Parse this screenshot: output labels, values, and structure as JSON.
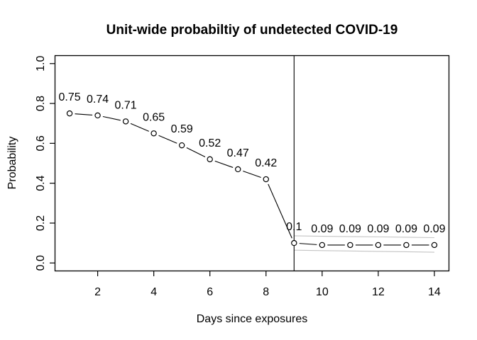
{
  "chart_data": {
    "type": "line",
    "title": "Unit-wide probabiltiy of undetected COVID-19",
    "xlabel": "Days since exposures",
    "ylabel": "Probability",
    "points": [
      {
        "x": 1,
        "y": 0.75,
        "label": "0.75"
      },
      {
        "x": 2,
        "y": 0.74,
        "label": "0.74"
      },
      {
        "x": 3,
        "y": 0.71,
        "label": "0.71"
      },
      {
        "x": 4,
        "y": 0.65,
        "label": "0.65"
      },
      {
        "x": 5,
        "y": 0.59,
        "label": "0.59"
      },
      {
        "x": 6,
        "y": 0.52,
        "label": "0.52"
      },
      {
        "x": 7,
        "y": 0.47,
        "label": "0.47"
      },
      {
        "x": 8,
        "y": 0.42,
        "label": "0.42"
      },
      {
        "x": 9,
        "y": 0.1,
        "label": "0.1"
      },
      {
        "x": 10,
        "y": 0.09,
        "label": "0.09"
      },
      {
        "x": 11,
        "y": 0.09,
        "label": "0.09"
      },
      {
        "x": 12,
        "y": 0.09,
        "label": "0.09"
      },
      {
        "x": 13,
        "y": 0.09,
        "label": "0.09"
      },
      {
        "x": 14,
        "y": 0.09,
        "label": "0.09"
      }
    ],
    "x_ticks": [
      {
        "v": 2,
        "label": "2"
      },
      {
        "v": 4,
        "label": "4"
      },
      {
        "v": 6,
        "label": "6"
      },
      {
        "v": 8,
        "label": "8"
      },
      {
        "v": 10,
        "label": "10"
      },
      {
        "v": 12,
        "label": "12"
      },
      {
        "v": 14,
        "label": "14"
      }
    ],
    "y_ticks": [
      {
        "v": 0.0,
        "label": "0.0"
      },
      {
        "v": 0.2,
        "label": "0.2"
      },
      {
        "v": 0.4,
        "label": "0.4"
      },
      {
        "v": 0.6,
        "label": "0.6"
      },
      {
        "v": 0.8,
        "label": "0.8"
      },
      {
        "v": 1.0,
        "label": "1.0"
      }
    ],
    "xlim": [
      0.48,
      14.52
    ],
    "ylim": [
      -0.04,
      1.04
    ],
    "vline_x": 9,
    "ci_band": {
      "x": [
        9,
        10,
        11,
        12,
        13,
        14
      ],
      "upper": [
        0.136,
        0.134,
        0.132,
        0.131,
        0.129,
        0.127
      ],
      "lower": [
        0.064,
        0.062,
        0.06,
        0.058,
        0.056,
        0.054
      ]
    },
    "grid": false,
    "legend": false,
    "colors": {
      "line": "#000000",
      "axis": "#000000",
      "ci": "#c4c4c4",
      "marker_fill": "#ffffff",
      "background": "#ffffff"
    }
  }
}
